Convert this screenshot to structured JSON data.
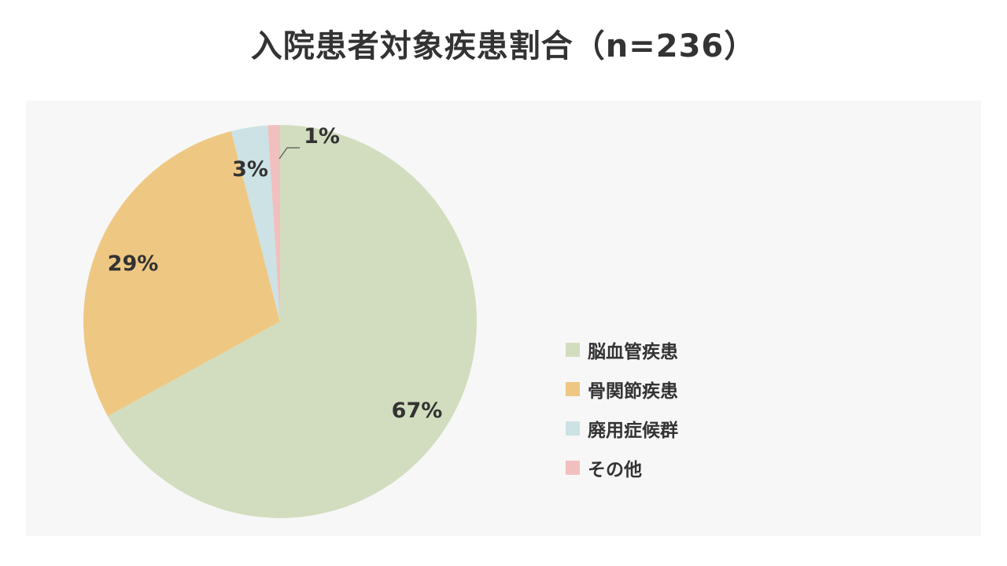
{
  "title": "入院患者対象疾患割合（n=236）",
  "chart_data": {
    "type": "pie",
    "title": "入院患者対象疾患割合（n=236）",
    "slices": [
      {
        "label": "脳血管疾患",
        "value": 67,
        "display": "67%",
        "color": "#d2ddbf"
      },
      {
        "label": "骨関節疾患",
        "value": 29,
        "display": "29%",
        "color": "#eec883"
      },
      {
        "label": "廃用症候群",
        "value": 3,
        "display": "3%",
        "color": "#cce2e4"
      },
      {
        "label": "その他",
        "value": 1,
        "display": "1%",
        "color": "#f2bfbf"
      }
    ],
    "legend_position": "right",
    "start": "12 o'clock",
    "direction": "clockwise"
  }
}
